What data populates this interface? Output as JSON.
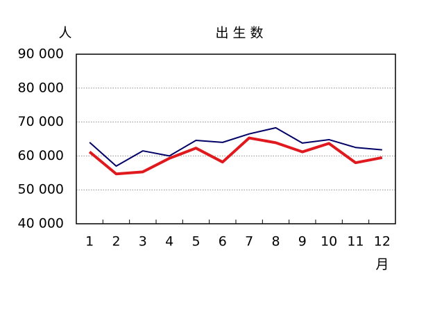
{
  "chart_data": {
    "type": "line",
    "title": "出 生 数",
    "y_label": "人",
    "x_label": "月",
    "categories": [
      "1",
      "2",
      "3",
      "4",
      "5",
      "6",
      "7",
      "8",
      "9",
      "10",
      "11",
      "12"
    ],
    "series": [
      {
        "color": "#000066",
        "values": [
          64000,
          57000,
          61500,
          60000,
          64600,
          64000,
          66500,
          68300,
          63800,
          64800,
          62500,
          61800
        ]
      },
      {
        "color": "#e0191e",
        "values": [
          61200,
          54700,
          55300,
          59300,
          62300,
          58200,
          65300,
          63900,
          61200,
          63700,
          58000,
          59500
        ]
      }
    ],
    "ylim": [
      40000,
      90000
    ],
    "yticks": [
      {
        "value": 40000,
        "label": "40 000"
      },
      {
        "value": 50000,
        "label": "50 000"
      },
      {
        "value": 60000,
        "label": "60 000"
      },
      {
        "value": 70000,
        "label": "70 000"
      },
      {
        "value": 80000,
        "label": "80 000"
      },
      {
        "value": 90000,
        "label": "90 000"
      }
    ],
    "grid": true
  }
}
